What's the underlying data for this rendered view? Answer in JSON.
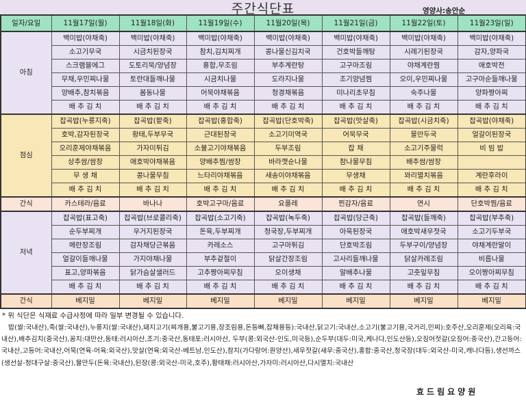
{
  "header": {
    "title": "주간식단표",
    "nutritionist": "영양사:송안순"
  },
  "table": {
    "corner_label": "일자/요일",
    "days": [
      "11월17일(월)",
      "11월18일(화)",
      "11월19일(수)",
      "11월20일(목)",
      "11월21일(금)",
      "11월22일(토)",
      "11월23일(일)"
    ],
    "breakfast": {
      "label": "아침",
      "rows": [
        [
          "백미밥(야채죽)",
          "백미밥(야채죽)",
          "백미밥(야채죽)",
          "백미밥(야채죽)",
          "백미밥(야채죽)",
          "백미밥(야채죽)",
          "백미밥(야채죽)"
        ],
        [
          "소고기무국",
          "시금치된장국",
          "참치,김치찌개",
          "콩나물신김치국",
          "건호박들깨탕",
          "시레기된장국",
          "감자,양파국"
        ],
        [
          "스크램블에그",
          "도토리묵/양념장",
          "홍합,무조림",
          "부추계란탕",
          "고구마조림",
          "야채계란찜",
          "애호박전"
        ],
        [
          "무채,우민찌나물",
          "토란대들깨나물",
          "시금치나물",
          "도라지나물",
          "조기양념찜",
          "오이,우민찌나물",
          "고구마순들깨나물"
        ],
        [
          "양배추,참치볶음",
          "봄동나물",
          "어묵야채볶음",
          "청경채볶음",
          "미나리초무침",
          "숙주나물",
          "양파짱아찌"
        ],
        [
          "배 추 김 치",
          "배 추 김 치",
          "배 추 김 치",
          "배 추 김 치",
          "배 추 김 치",
          "배 추 김 치",
          "배 추 김 치"
        ]
      ]
    },
    "lunch": {
      "label": "점심",
      "rows": [
        [
          "잡곡밥(누룽지죽)",
          "잡곡밥(팥죽)",
          "잡곡밥(홍합죽)",
          "잡곡밥(단호박죽)",
          "잡곡밥(맛살죽)",
          "잡곡밥(시금치죽)",
          "잡곡밥(야채죽)"
        ],
        [
          "호박,감자된장국",
          "황태,두부무국",
          "근대된장국",
          "소고기미역국",
          "어묵무국",
          "물만두국",
          "얼갈이된장국"
        ],
        [
          "오리훈제야채볶음",
          "가자미튀김",
          "소불고기야채볶음",
          "두부조림",
          "잡 채",
          "소고기주물럭",
          "비 빔 밥"
        ],
        [
          "상추쌈/쌈장",
          "애호박야채볶음",
          "양배추찜/쌈장",
          "바라깻순나물",
          "참나물무침",
          "배추쌈/쌈장",
          ""
        ],
        [
          "무 생 채",
          "콩나물무침",
          "느타리야채볶음",
          "새송이야채볶음",
          "무생채",
          "꽈리멸치볶음",
          "계란후라이"
        ],
        [
          "배 추 김 치",
          "배 추 김 치",
          "배 추 김 치",
          "배 추 김 치",
          "배 추 김 치",
          "배 추 김 치",
          "배 추 김 치"
        ]
      ]
    },
    "snack1": {
      "label": "간식",
      "items": [
        "카스테라/음료",
        "바나나",
        "호박고구마/음료",
        "요플레",
        "찐감자/음료",
        "연시",
        "단호박찜/음료"
      ]
    },
    "dinner": {
      "label": "저녁",
      "rows": [
        [
          "잡곡밥(표고죽)",
          "잡곡밥(브로콜리죽)",
          "잡곡밥(소고기죽)",
          "잡곡밥(녹두죽)",
          "잡곡밥(당근죽)",
          "잡곡밥(들깨죽)",
          "잡곡밥(부추죽)"
        ],
        [
          "순두부찌개",
          "우거지된장국",
          "돈육,두부찌개",
          "청국장,두부찌개",
          "아욱된장국",
          "애호박새우젓국",
          "소고기두부국"
        ],
        [
          "메란장조림",
          "감자채당근볶음",
          "카레소스",
          "고구마튀김",
          "단호박조림",
          "두부구이/양념장",
          "야채계란말이"
        ],
        [
          "얼갈이들깨나물",
          "가지야채나물",
          "부추겉절이",
          "닭살간장조림",
          "고사리들깨나물",
          "닭살카레조림",
          "비름나물"
        ],
        [
          "표고,양파볶음",
          "닭가슴살샐러드",
          "고추짱아찌무침",
          "오이생채",
          "알배추나물",
          "고춧잎무침",
          "오이짱아찌무침"
        ],
        [
          "배 추 김 치",
          "배 추 김 치",
          "배 추 김 치",
          "배 추 김 치",
          "배 추 김 치",
          "배 추 김 치",
          "배 추 김 치"
        ]
      ]
    },
    "snack2": {
      "label": "간식",
      "items": [
        "베지밀",
        "베지밀",
        "베지밀",
        "베지밀",
        "베지밀",
        "베지밀",
        "베지밀"
      ]
    }
  },
  "footer": {
    "notice": "* 위 식단은 식재료 수급사정에 따라 일부 변경될 수 있습니다.",
    "origin_info": "밥(쌀:국내산),죽(쌀:국내산),누룽지(쌀:국내산),돼지고기(찌개용,불고기용,장조림용,돈등뼈,잡채용등):국내산,닭고기:국내산,소고기(불고기용,국거리,민찌):호주산,오리훈제(오리육:국내산),배추김치(중국산),꽁치:대만산,동태:러시아산,조기:중국산,동태포:러시아산, 두부(콩:외국산-인도,미국등),순두부(대두:미국,케나다,인도산등),오징어젓갈(오징어:중국산),간고등어:국내산,고등어:국내산,어묵(연육-어육:외국산),맛살(연육:외국산-베트남,인도산),참치(가다랑어:원양산),새우젓갈(새우:중국산),홍합:중국산,청국장(대두:외국산-미국,캐나다등),생선까스(생선살-청대구살:중국산),물만두(돈육:국내산),된장(콩:외국산-미국,호주),황태채:러시아산,가자미:러시아산,다시멸치:국내산",
    "facility_name": "효드림요양원"
  },
  "colors": {
    "header_bg": "#9fe2c3",
    "breakfast_bg": "#e8e2f2",
    "lunch_bg": "#f8e7b7",
    "snack_bg": "#fbe4d8",
    "title_band": "#e9e1ef"
  }
}
